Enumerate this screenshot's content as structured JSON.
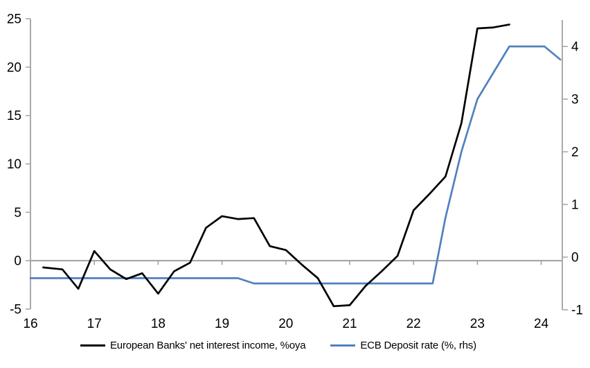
{
  "chart_data": {
    "type": "line",
    "title": "",
    "x_axis": {
      "min": 16,
      "max": 24.33,
      "ticks": [
        16,
        17,
        18,
        19,
        20,
        21,
        22,
        23,
        24
      ],
      "tick_labels": [
        "16",
        "17",
        "18",
        "19",
        "20",
        "21",
        "22",
        "23",
        "24"
      ]
    },
    "y_axis_left": {
      "min": -5,
      "max": 25,
      "ticks": [
        -5,
        0,
        5,
        10,
        15,
        20,
        25
      ],
      "tick_labels": [
        "-5",
        "0",
        "5",
        "10",
        "15",
        "20",
        "25"
      ]
    },
    "y_axis_right": {
      "min": -1,
      "max": 4.5,
      "ticks": [
        -1,
        0,
        1,
        2,
        3,
        4
      ],
      "tick_labels": [
        "-1",
        "0",
        "1",
        "2",
        "3",
        "4"
      ]
    },
    "zero_gridline": true,
    "legend_position": "bottom",
    "series": [
      {
        "id": "european-banks-net-interest-income",
        "name": "European Banks' net interest income, %oya",
        "axis": "left",
        "color": "#000000",
        "points": [
          [
            16.2,
            -0.7
          ],
          [
            16.5,
            -0.9
          ],
          [
            16.75,
            -2.9
          ],
          [
            17.0,
            1.0
          ],
          [
            17.25,
            -0.9
          ],
          [
            17.5,
            -1.9
          ],
          [
            17.75,
            -1.3
          ],
          [
            18.0,
            -3.4
          ],
          [
            18.25,
            -1.1
          ],
          [
            18.5,
            -0.2
          ],
          [
            18.75,
            3.4
          ],
          [
            19.0,
            4.6
          ],
          [
            19.25,
            4.3
          ],
          [
            19.5,
            4.4
          ],
          [
            19.75,
            1.5
          ],
          [
            20.0,
            1.1
          ],
          [
            20.25,
            -0.4
          ],
          [
            20.5,
            -1.8
          ],
          [
            20.75,
            -4.7
          ],
          [
            21.0,
            -4.6
          ],
          [
            21.25,
            -2.6
          ],
          [
            21.5,
            -1.1
          ],
          [
            21.75,
            0.5
          ],
          [
            22.0,
            5.2
          ],
          [
            22.25,
            6.9
          ],
          [
            22.5,
            8.7
          ],
          [
            22.75,
            14.2
          ],
          [
            23.0,
            24.0
          ],
          [
            23.25,
            24.1
          ],
          [
            23.5,
            24.4
          ]
        ]
      },
      {
        "id": "ecb-deposit-rate",
        "name": "ECB Deposit rate (%, rhs)",
        "axis": "right",
        "color": "#4f81bd",
        "points": [
          [
            16.0,
            -0.4
          ],
          [
            19.25,
            -0.4
          ],
          [
            19.5,
            -0.5
          ],
          [
            22.3,
            -0.5
          ],
          [
            22.5,
            0.75
          ],
          [
            22.75,
            2.0
          ],
          [
            23.0,
            3.0
          ],
          [
            23.25,
            3.5
          ],
          [
            23.5,
            4.0
          ],
          [
            24.05,
            4.0
          ],
          [
            24.3,
            3.75
          ]
        ]
      }
    ],
    "colors": {
      "axis": "#a9a9a9",
      "zero_line": "#a0a0a0",
      "text": "#000000"
    }
  }
}
